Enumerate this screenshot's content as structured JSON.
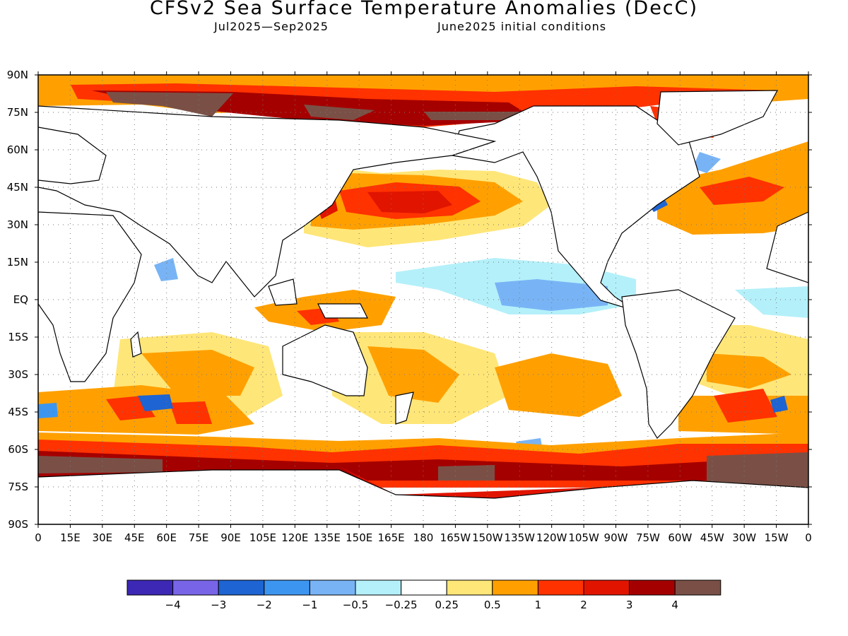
{
  "title": "CFSv2 Sea Surface Temperature Anomalies (DecC)",
  "subtitle_period": "Jul2025—Sep2025",
  "subtitle_init": "June2025 initial conditions",
  "lat_labels": [
    "90N",
    "75N",
    "60N",
    "45N",
    "30N",
    "15N",
    "EQ",
    "15S",
    "30S",
    "45S",
    "60S",
    "75S",
    "90S"
  ],
  "lon_labels": [
    "0",
    "15E",
    "30E",
    "45E",
    "60E",
    "75E",
    "90E",
    "105E",
    "120E",
    "135E",
    "150E",
    "165E",
    "180",
    "165W",
    "150W",
    "135W",
    "120W",
    "105W",
    "90W",
    "75W",
    "60W",
    "45W",
    "30W",
    "15W",
    "0"
  ],
  "colorbar": {
    "colors": [
      "#3c28b4",
      "#7864e6",
      "#1e64d2",
      "#3c96f0",
      "#78b4f5",
      "#b4f0fa",
      "#ffffff",
      "#ffe678",
      "#ffa000",
      "#ff3200",
      "#e11400",
      "#a50000",
      "#7a5046"
    ],
    "labels": [
      "−4",
      "−3",
      "−2",
      "−1",
      "−0.5",
      "−0.25",
      "0.25",
      "0.5",
      "1",
      "2",
      "3",
      "4"
    ]
  },
  "map_colors": {
    "land": "#ffffff",
    "coast": "#000000",
    "c_m4": "#3c28b4",
    "c_m3": "#7864e6",
    "c_m2": "#1e64d2",
    "c_m1": "#3c96f0",
    "c_m05": "#78b4f5",
    "c_m025": "#b4f0fa",
    "c_025": "#ffe678",
    "c_05": "#ffa000",
    "c_1": "#ff3200",
    "c_2": "#e11400",
    "c_3": "#a50000",
    "c_4": "#7a5046"
  }
}
